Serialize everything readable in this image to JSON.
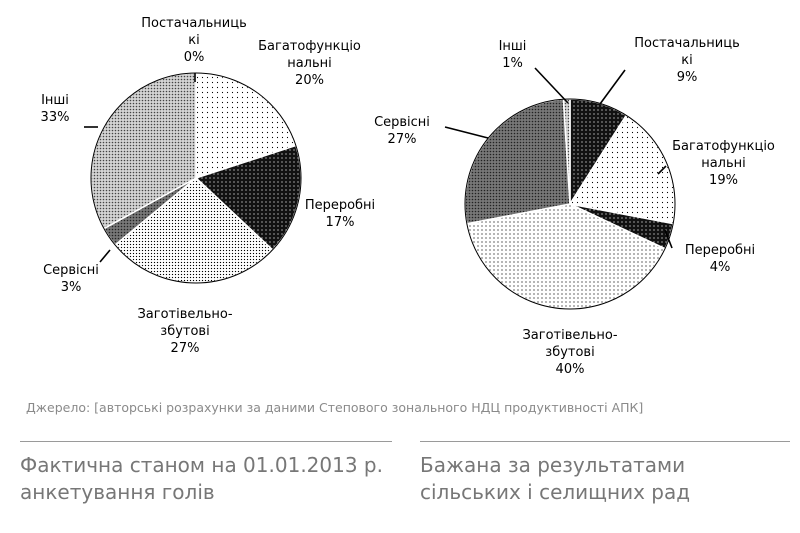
{
  "chart_data": [
    {
      "type": "pie",
      "caption_lines": [
        "Фактична станом на 01.01.2013 р.",
        "анкетування голів"
      ],
      "slices": [
        {
          "name_lines": [
            "Постачальниць",
            "кі"
          ],
          "value": 0,
          "label": "0%",
          "pattern": "black"
        },
        {
          "name_lines": [
            "Багатофункціо",
            "нальні"
          ],
          "value": 20,
          "label": "20%",
          "pattern": "sparse"
        },
        {
          "name_lines": [
            "Переробні"
          ],
          "value": 17,
          "label": "17%",
          "pattern": "black"
        },
        {
          "name_lines": [
            "Заготівельно-",
            "збутові"
          ],
          "value": 27,
          "label": "27%",
          "pattern": "medium"
        },
        {
          "name_lines": [
            "Сервісні"
          ],
          "value": 3,
          "label": "3%",
          "pattern": "dark"
        },
        {
          "name_lines": [
            "Інші"
          ],
          "value": 33,
          "label": "33%",
          "pattern": "dense"
        }
      ]
    },
    {
      "type": "pie",
      "caption_lines": [
        "Бажана за результатами",
        "сільських і селищних рад"
      ],
      "slices": [
        {
          "name_lines": [
            "Постачальниць",
            "кі"
          ],
          "value": 9,
          "label": "9%",
          "pattern": "black"
        },
        {
          "name_lines": [
            "Багатофункціо",
            "нальні"
          ],
          "value": 19,
          "label": "19%",
          "pattern": "sparse"
        },
        {
          "name_lines": [
            "Переробні"
          ],
          "value": 4,
          "label": "4%",
          "pattern": "black"
        },
        {
          "name_lines": [
            "Заготівельно-",
            "збутові"
          ],
          "value": 40,
          "label": "40%",
          "pattern": "light"
        },
        {
          "name_lines": [
            "Сервісні"
          ],
          "value": 27,
          "label": "27%",
          "pattern": "dark"
        },
        {
          "name_lines": [
            "Інші"
          ],
          "value": 1,
          "label": "1%",
          "pattern": "dense"
        }
      ]
    }
  ],
  "source": "Джерело: [авторські розрахунки за даними Степового зонального НДЦ продуктивності АПК]"
}
